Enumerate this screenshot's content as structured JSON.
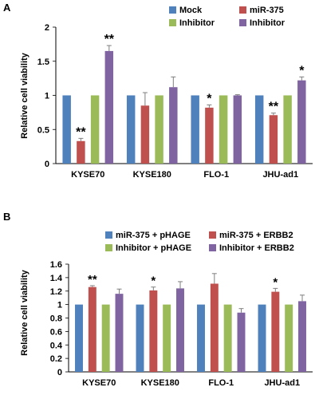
{
  "colors": {
    "blue": "#4F81BD",
    "red": "#C0504D",
    "green": "#9BBB59",
    "purple": "#8064A2",
    "error_bar": "#7f7f7f"
  },
  "chart_data": [
    {
      "panel": "A",
      "type": "bar",
      "ylabel": "Relative cell viability",
      "ylim": [
        0,
        2
      ],
      "yticks": [
        "0",
        "0.5",
        "1",
        "1.5",
        "2"
      ],
      "categories": [
        "KYSE70",
        "KYSE180",
        "FLO-1",
        "JHU-ad1"
      ],
      "legend": {
        "placement": "top"
      },
      "series": [
        {
          "name": "Mock",
          "color": "blue",
          "values": [
            1.0,
            1.0,
            1.0,
            1.0
          ],
          "errors": [
            0,
            0,
            0,
            0
          ],
          "sig": [
            "",
            "",
            "",
            ""
          ]
        },
        {
          "name": "miR-375",
          "color": "red",
          "values": [
            0.33,
            0.85,
            0.82,
            0.71
          ],
          "errors": [
            0.04,
            0.19,
            0.04,
            0.03
          ],
          "sig": [
            "**",
            "",
            "*",
            "**"
          ]
        },
        {
          "name": "Inhibitor",
          "color": "green",
          "values": [
            1.0,
            1.0,
            1.0,
            1.0
          ],
          "errors": [
            0,
            0,
            0,
            0
          ],
          "sig": [
            "",
            "",
            "",
            ""
          ]
        },
        {
          "name": "Inhibitor",
          "color": "purple",
          "values": [
            1.65,
            1.12,
            1.0,
            1.22
          ],
          "errors": [
            0.08,
            0.15,
            0.01,
            0.05
          ],
          "sig": [
            "**",
            "",
            "",
            "*"
          ]
        }
      ]
    },
    {
      "panel": "B",
      "type": "bar",
      "ylabel": "Relative cell viability",
      "ylim": [
        0,
        1.6
      ],
      "yticks": [
        "0",
        "0.2",
        "0.4",
        "0.6",
        "0.8",
        "1",
        "1.2",
        "1.4",
        "1.6"
      ],
      "categories": [
        "KYSE70",
        "KYSE180",
        "FLO-1",
        "JHU-ad1"
      ],
      "legend": {
        "placement": "top"
      },
      "series": [
        {
          "name": "miR-375 + pHAGE",
          "color": "blue",
          "values": [
            1.0,
            1.0,
            1.0,
            1.0
          ],
          "errors": [
            0,
            0,
            0,
            0
          ],
          "sig": [
            "",
            "",
            "",
            ""
          ]
        },
        {
          "name": "miR-375 + ERBB2",
          "color": "red",
          "values": [
            1.26,
            1.21,
            1.31,
            1.19
          ],
          "errors": [
            0.02,
            0.05,
            0.15,
            0.05
          ],
          "sig": [
            "**",
            "*",
            "",
            "*"
          ]
        },
        {
          "name": "Inhibitor + pHAGE",
          "color": "green",
          "values": [
            1.0,
            1.0,
            1.0,
            1.0
          ],
          "errors": [
            0,
            0,
            0,
            0
          ],
          "sig": [
            "",
            "",
            "",
            ""
          ]
        },
        {
          "name": "Inhibitor + ERBB2",
          "color": "purple",
          "values": [
            1.16,
            1.24,
            0.88,
            1.05
          ],
          "errors": [
            0.07,
            0.1,
            0.06,
            0.09
          ],
          "sig": [
            "",
            "",
            "",
            ""
          ]
        }
      ]
    }
  ]
}
